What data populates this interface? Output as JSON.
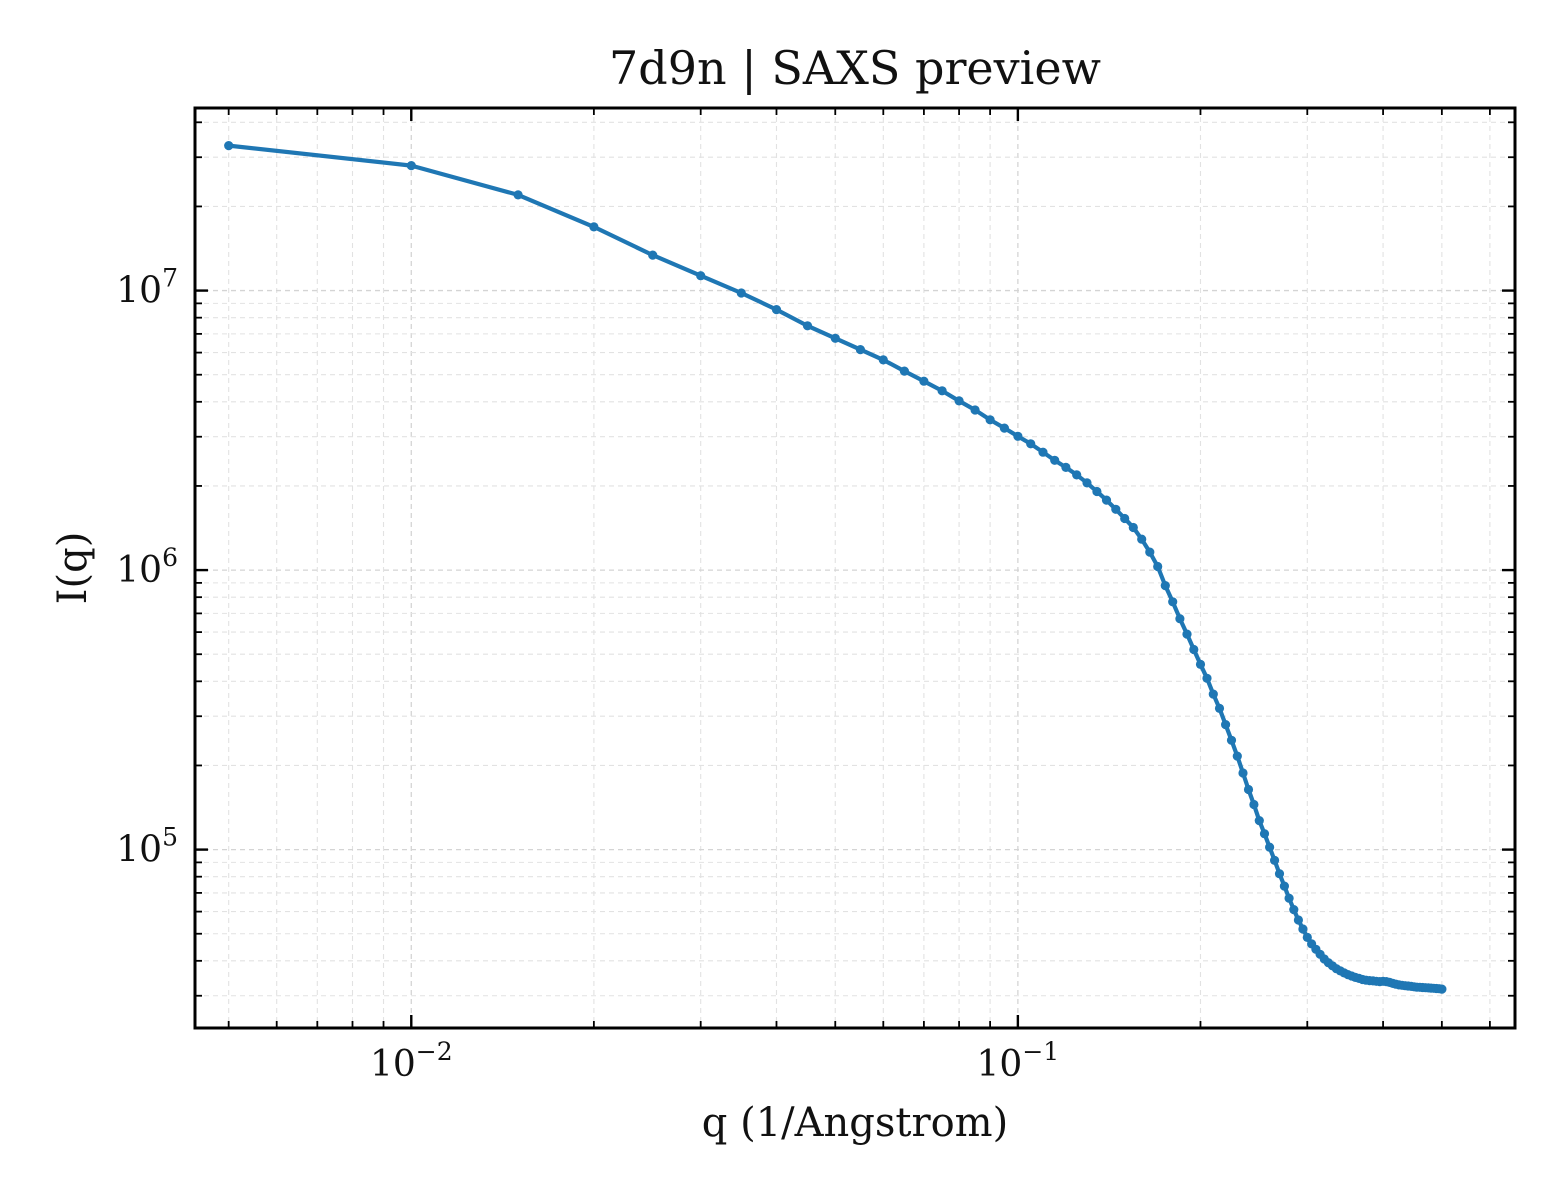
{
  "chart_data": {
    "type": "line",
    "title": "7d9n | SAXS preview",
    "xlabel": "q (1/Angstrom)",
    "ylabel": "I(q)",
    "x_scale": "log",
    "y_scale": "log",
    "xlim": [
      0.0044,
      0.66
    ],
    "ylim": [
      23000,
      45000000
    ],
    "x_tick_labels": [
      {
        "value": 0.01,
        "base": "10",
        "exponent": "−2"
      },
      {
        "value": 0.1,
        "base": "10",
        "exponent": "−1"
      }
    ],
    "y_tick_labels": [
      {
        "value": 100000,
        "base": "10",
        "exponent": "5"
      },
      {
        "value": 1000000,
        "base": "10",
        "exponent": "6"
      },
      {
        "value": 10000000,
        "base": "10",
        "exponent": "7"
      }
    ],
    "grid": true,
    "ticks_direction": "in",
    "colors": {
      "series": "#1f77b4",
      "grid": "#d4d4d4",
      "frame": "#000000"
    },
    "series": [
      {
        "marker": "circle",
        "x": [
          0.005,
          0.01,
          0.015,
          0.02,
          0.025,
          0.03,
          0.035,
          0.04,
          0.045,
          0.05,
          0.055,
          0.06,
          0.065,
          0.07,
          0.075,
          0.08,
          0.085,
          0.09,
          0.095,
          0.1,
          0.105,
          0.11,
          0.115,
          0.12,
          0.125,
          0.13,
          0.135,
          0.14,
          0.145,
          0.15,
          0.155,
          0.16,
          0.165,
          0.17,
          0.175,
          0.18,
          0.185,
          0.19,
          0.195,
          0.2,
          0.205,
          0.21,
          0.215,
          0.22,
          0.225,
          0.23,
          0.235,
          0.24,
          0.245,
          0.25,
          0.255,
          0.26,
          0.265,
          0.27,
          0.275,
          0.28,
          0.285,
          0.29,
          0.295,
          0.3,
          0.305,
          0.31,
          0.315,
          0.32,
          0.325,
          0.33,
          0.335,
          0.34,
          0.345,
          0.35,
          0.355,
          0.36,
          0.365,
          0.37,
          0.375,
          0.38,
          0.385,
          0.39,
          0.395,
          0.4,
          0.405,
          0.41,
          0.415,
          0.42,
          0.425,
          0.43,
          0.435,
          0.44,
          0.445,
          0.45,
          0.455,
          0.46,
          0.465,
          0.47,
          0.475,
          0.48,
          0.485,
          0.49,
          0.495,
          0.5
        ],
        "y": [
          33000000,
          28000000,
          22000000,
          16900000,
          13400000,
          11300000,
          9800000,
          8550000,
          7480000,
          6750000,
          6150000,
          5650000,
          5150000,
          4740000,
          4380000,
          4030000,
          3740000,
          3450000,
          3220000,
          3010000,
          2830000,
          2640000,
          2470000,
          2330000,
          2190000,
          2050000,
          1910000,
          1780000,
          1650000,
          1530000,
          1420000,
          1290000,
          1160000,
          1030000,
          880000,
          770000,
          670000,
          590000,
          520000,
          460000,
          410000,
          360000,
          320000,
          280000,
          246000,
          216000,
          188000,
          164000,
          145000,
          127000,
          114000,
          102000,
          91500,
          82000,
          74000,
          67000,
          61000,
          56000,
          52000,
          48500,
          46000,
          44000,
          42200,
          40600,
          39400,
          38400,
          37500,
          36800,
          36200,
          35700,
          35300,
          34900,
          34600,
          34300,
          34100,
          34000,
          33900,
          33800,
          33700,
          33800,
          33700,
          33500,
          33200,
          33000,
          32800,
          32700,
          32600,
          32500,
          32400,
          32300,
          32200,
          32150,
          32100,
          32050,
          32000,
          31950,
          31900,
          31850,
          31800,
          31700
        ]
      }
    ]
  }
}
